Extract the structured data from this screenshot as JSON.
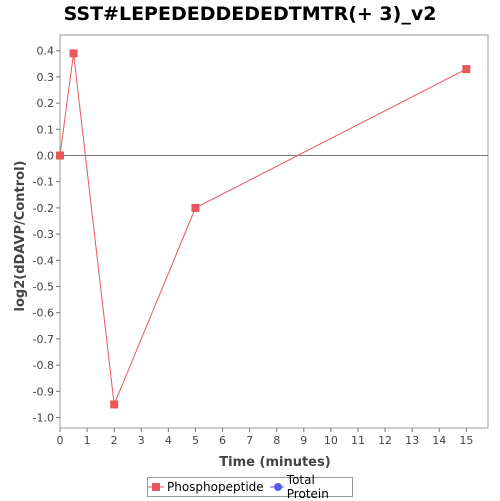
{
  "chart_data": {
    "type": "line",
    "title": "SST#LEPEDEDDEDEDTMTR(+ 3)_v2",
    "xlabel": "Time (minutes)",
    "ylabel": "log2(dDAVP/Control)",
    "xlim": [
      0,
      15.8
    ],
    "ylim": [
      -1.04,
      0.46
    ],
    "x_ticks": [
      0,
      1,
      2,
      3,
      4,
      5,
      6,
      7,
      8,
      9,
      10,
      11,
      12,
      13,
      14,
      15
    ],
    "y_ticks": [
      0.4,
      0.3,
      0.2,
      0.1,
      0.0,
      -0.1,
      -0.2,
      -0.3,
      -0.4,
      -0.5,
      -0.6,
      -0.7,
      -0.8,
      -0.9,
      -1.0
    ],
    "y_tick_labels": [
      "0.4",
      "0.3",
      "0.2",
      "0.1",
      "0.0",
      "-0.1",
      "-0.2",
      "-0.3",
      "-0.4",
      "-0.5",
      "-0.6",
      "-0.7",
      "-0.8",
      "-0.9",
      "-1.0"
    ],
    "reference_line_y": 0,
    "grid": false,
    "legend_position": "bottom-center",
    "series": [
      {
        "name": "Phosphopeptide",
        "color": "#e8585a",
        "marker": "square",
        "x": [
          0,
          0.5,
          2,
          5,
          15
        ],
        "y": [
          0.0,
          0.39,
          -0.95,
          -0.2,
          0.33
        ]
      },
      {
        "name": "Total Protein",
        "color": "#5a5ae8",
        "marker": "circle",
        "x": [],
        "y": []
      }
    ]
  }
}
